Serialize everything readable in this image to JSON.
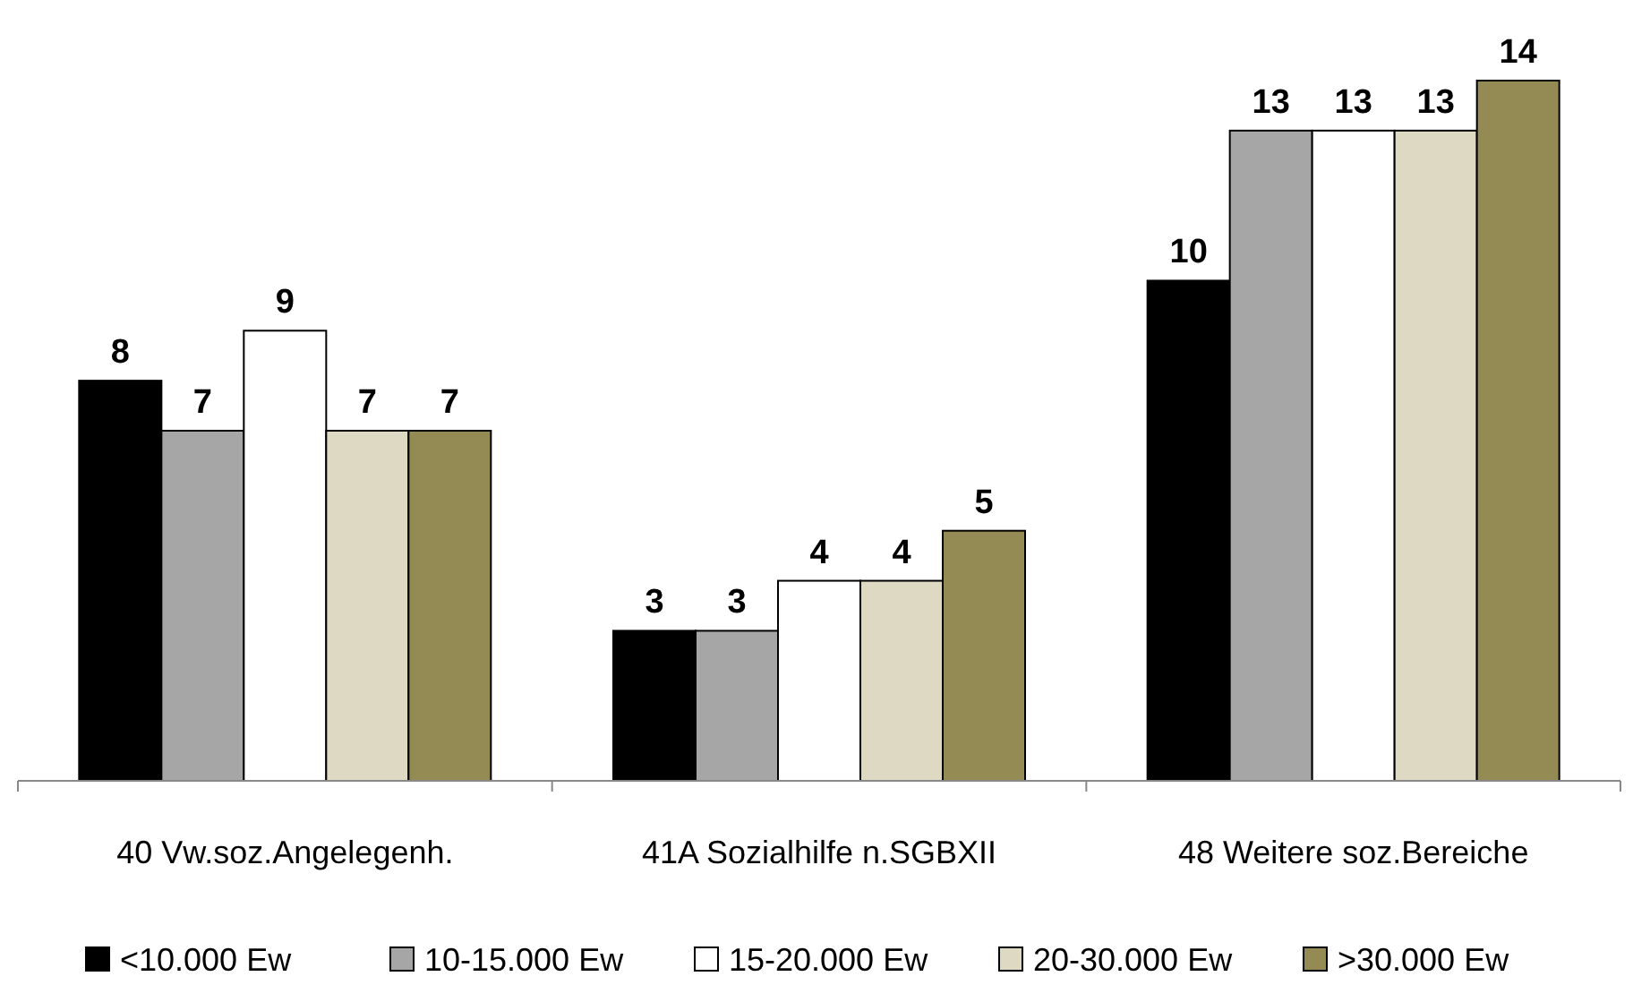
{
  "chart_data": {
    "type": "bar",
    "categories": [
      "40 Vw.soz.Angelegenh.",
      "41A Sozialhilfe n.SGBXII",
      "48 Weitere soz.Bereiche"
    ],
    "series": [
      {
        "name": "<10.000 Ew",
        "color": "#000000",
        "values": [
          8,
          3,
          10
        ]
      },
      {
        "name": "10-15.000 Ew",
        "color": "#a6a6a6",
        "values": [
          7,
          3,
          13
        ]
      },
      {
        "name": "15-20.000 Ew",
        "color": "#ffffff",
        "values": [
          9,
          4,
          13
        ]
      },
      {
        "name": "20-30.000 Ew",
        "color": "#ddd9c3",
        "values": [
          7,
          4,
          13
        ]
      },
      {
        "name": ">30.000 Ew",
        "color": "#948a54",
        "values": [
          7,
          5,
          14
        ]
      }
    ],
    "data_labels": true,
    "legend": "bottom",
    "grid": false
  }
}
